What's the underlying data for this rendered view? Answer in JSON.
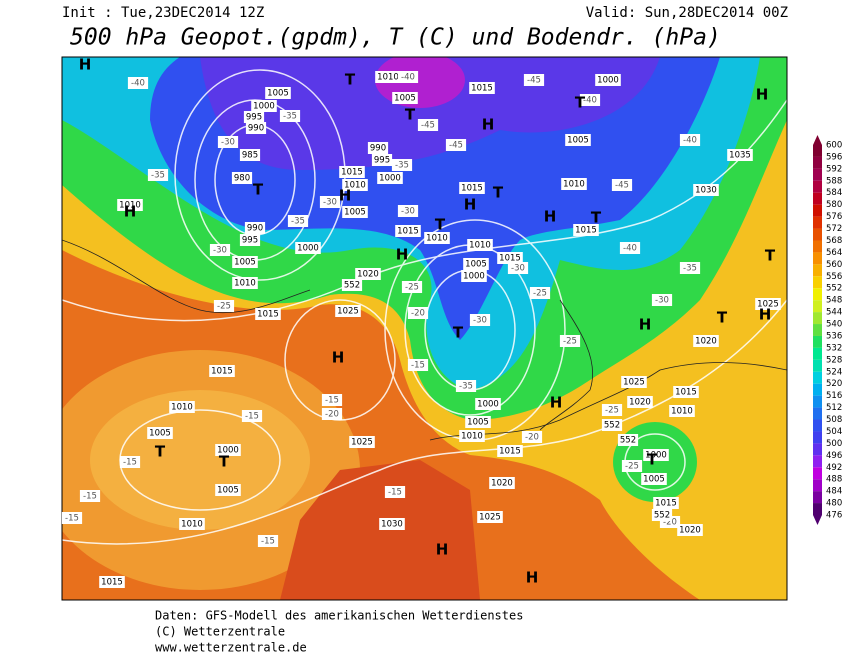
{
  "header": {
    "init": "Init : Tue,23DEC2014 12Z",
    "valid": "Valid: Sun,28DEC2014 00Z",
    "title": "500 hPa Geopot.(gpdm), T (C) und Bodendr. (hPa)"
  },
  "map": {
    "pressure_labels": [
      "1010",
      "1005",
      "1010",
      "1015",
      "1020",
      "1025",
      "1015",
      "1010",
      "1005",
      "1000",
      "1005",
      "1010",
      "1015",
      "1025",
      "1030",
      "1025",
      "1020",
      "1015",
      "1010",
      "1005",
      "1000",
      "1015",
      "1010",
      "1005",
      "1000",
      "1015",
      "1010",
      "1015",
      "1000",
      "1005",
      "1010",
      "1015",
      "1000",
      "995",
      "990",
      "1005",
      "1000",
      "995",
      "990",
      "985",
      "980",
      "990",
      "995",
      "1010",
      "1005",
      "1015",
      "1005",
      "1010",
      "1015",
      "1000",
      "1035",
      "1030",
      "1025",
      "1020",
      "1025",
      "1020",
      "1015",
      "1010",
      "1020",
      "1015",
      "1005",
      "1000"
    ],
    "temperature_labels": [
      "-40",
      "-35",
      "-30",
      "-30",
      "-25",
      "-35",
      "-35",
      "-30",
      "-25",
      "-20",
      "-15",
      "-15",
      "-15",
      "-15",
      "-15",
      "-15",
      "-15",
      "-20",
      "-15",
      "-30",
      "-35",
      "-25",
      "-25",
      "-20",
      "-25",
      "-25",
      "-20",
      "-30",
      "-35",
      "-40",
      "-45",
      "-40",
      "-45",
      "-40",
      "-45",
      "-45",
      "-35",
      "-40",
      "-30",
      "-30"
    ],
    "height_labels": [
      "552",
      "552",
      "552",
      "552"
    ],
    "centers": [
      "H",
      "H",
      "T",
      "H",
      "T",
      "T",
      "H",
      "H",
      "T",
      "T",
      "H",
      "T",
      "T",
      "H",
      "T",
      "T",
      "H",
      "H",
      "H",
      "H",
      "T",
      "T",
      "T",
      "H",
      "T",
      "H",
      "H"
    ]
  },
  "colorbar": {
    "levels": [
      600,
      596,
      592,
      588,
      584,
      580,
      576,
      572,
      568,
      564,
      560,
      556,
      552,
      548,
      544,
      540,
      536,
      532,
      528,
      524,
      520,
      516,
      512,
      508,
      504,
      500,
      496,
      492,
      488,
      484,
      480,
      476
    ],
    "colors": [
      "#800030",
      "#900040",
      "#a00050",
      "#b00040",
      "#c00020",
      "#d01000",
      "#e03000",
      "#e85000",
      "#f07000",
      "#f89000",
      "#f8b000",
      "#f8d000",
      "#f0f000",
      "#d0f020",
      "#a0e830",
      "#60e040",
      "#20e060",
      "#00e890",
      "#00e0b0",
      "#00d0e0",
      "#00b0f0",
      "#1090f0",
      "#2070f0",
      "#3050f0",
      "#4040f0",
      "#6030f0",
      "#9020f0",
      "#c000e0",
      "#a000c8",
      "#7a00a0",
      "#500070"
    ]
  },
  "footer": {
    "lines": [
      "Daten: GFS-Modell des amerikanischen Wetterdienstes",
      "(C) Wetterzentrale",
      "www.wetterzentrale.de"
    ]
  }
}
